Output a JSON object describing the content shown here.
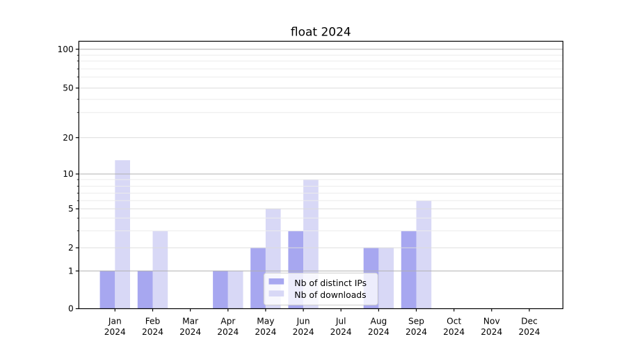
{
  "title": "float 2024",
  "chart_data": {
    "type": "bar",
    "title": "float 2024",
    "categories": [
      "Jan 2024",
      "Feb 2024",
      "Mar 2024",
      "Apr 2024",
      "May 2024",
      "Jun 2024",
      "Jul 2024",
      "Aug 2024",
      "Sep 2024",
      "Oct 2024",
      "Nov 2024",
      "Dec 2024"
    ],
    "month_labels": [
      [
        "Jan",
        "2024"
      ],
      [
        "Feb",
        "2024"
      ],
      [
        "Mar",
        "2024"
      ],
      [
        "Apr",
        "2024"
      ],
      [
        "May",
        "2024"
      ],
      [
        "Jun",
        "2024"
      ],
      [
        "Jul",
        "2024"
      ],
      [
        "Aug",
        "2024"
      ],
      [
        "Sep",
        "2024"
      ],
      [
        "Oct",
        "2024"
      ],
      [
        "Nov",
        "2024"
      ],
      [
        "Dec",
        "2024"
      ]
    ],
    "series": [
      {
        "name": "Nb of distinct IPs",
        "color": "#a7a7f0",
        "values": [
          1,
          1,
          0,
          1,
          2,
          3,
          0,
          2,
          3,
          0,
          0,
          0
        ]
      },
      {
        "name": "Nb of downloads",
        "color": "#d8d8f6",
        "values": [
          13,
          3,
          0,
          1,
          5,
          9,
          0,
          2,
          6,
          0,
          0,
          0
        ]
      }
    ],
    "y_ticks": [
      0,
      1,
      2,
      5,
      10,
      20,
      50,
      100
    ],
    "y_tick_labels": [
      "0",
      "1",
      "2",
      "5",
      "10",
      "20",
      "50",
      "100"
    ],
    "y_minor_gridlines": [
      3,
      4,
      6,
      7,
      8,
      9,
      30,
      40,
      60,
      70,
      80,
      90
    ],
    "y_decade_gridlines": [
      1,
      10,
      100
    ],
    "y_labeled_gridlines": [
      2,
      5,
      20,
      50
    ],
    "y_scale": "symlog",
    "xlabel": "",
    "ylabel": "",
    "grid": true,
    "legend_position": "inside lower-center"
  },
  "colors": {
    "bar_distinct_ips": "#a7a7f0",
    "bar_downloads": "#d8d8f6",
    "grid_decade": "#b0b0b0",
    "grid_labeled": "#dcdcdc",
    "grid_minor": "#ececec",
    "axis": "#000000",
    "text": "#000000",
    "legend_border": "#cccccc",
    "legend_bg": "rgba(255,255,255,0.8)"
  }
}
